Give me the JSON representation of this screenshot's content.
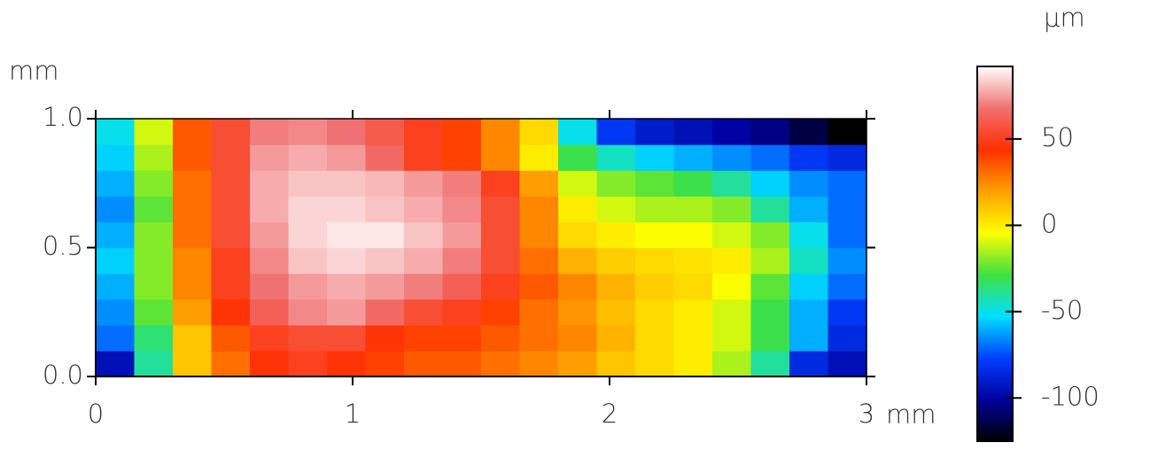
{
  "chart_data": {
    "type": "heatmap",
    "x_unit": "mm",
    "y_unit": "mm",
    "z_unit": "µm",
    "xlim": [
      0,
      3
    ],
    "ylim": [
      0,
      1
    ],
    "xticks": [
      0,
      1,
      2,
      3
    ],
    "yticks": [
      {
        "value": 0,
        "label": "0.0"
      },
      {
        "value": 0.5,
        "label": "0.5"
      },
      {
        "value": 1,
        "label": "1.0"
      }
    ],
    "zlim": [
      -125,
      92
    ],
    "zticks": [
      50,
      0,
      -50,
      -100
    ],
    "colors": [
      "#000000",
      "#0000a0",
      "#0040ff",
      "#00e0ff",
      "#40e040",
      "#ffff00",
      "#ffa000",
      "#ff3000",
      "#f07070",
      "#ffffff"
    ],
    "z": [
      [
        -95,
        -40,
        10,
        30,
        45,
        50,
        45,
        40,
        35,
        35,
        30,
        25,
        20,
        10,
        5,
        0,
        -15,
        -40,
        -85,
        -95
      ],
      [
        -70,
        -35,
        10,
        35,
        50,
        55,
        55,
        45,
        40,
        40,
        35,
        30,
        25,
        15,
        5,
        0,
        -10,
        -30,
        -60,
        -85
      ],
      [
        -65,
        -25,
        20,
        45,
        62,
        72,
        75,
        65,
        55,
        50,
        40,
        30,
        22,
        12,
        5,
        0,
        -10,
        -30,
        -60,
        -80
      ],
      [
        -60,
        -20,
        25,
        50,
        68,
        75,
        78,
        75,
        70,
        62,
        50,
        35,
        25,
        15,
        8,
        5,
        -5,
        -25,
        -55,
        -70
      ],
      [
        -55,
        -20,
        25,
        50,
        72,
        82,
        85,
        82,
        78,
        70,
        55,
        30,
        15,
        8,
        5,
        3,
        0,
        -15,
        -45,
        -65
      ],
      [
        -60,
        -20,
        30,
        55,
        75,
        85,
        88,
        88,
        82,
        75,
        55,
        25,
        5,
        0,
        -5,
        -5,
        -10,
        -20,
        -50,
        -70
      ],
      [
        -65,
        -25,
        30,
        55,
        78,
        85,
        85,
        82,
        78,
        72,
        55,
        25,
        0,
        -10,
        -15,
        -15,
        -20,
        -40,
        -60,
        -70
      ],
      [
        -60,
        -20,
        30,
        55,
        78,
        82,
        82,
        80,
        75,
        70,
        50,
        20,
        -10,
        -20,
        -25,
        -30,
        -40,
        -55,
        -65,
        -70
      ],
      [
        -55,
        -15,
        35,
        55,
        75,
        78,
        75,
        65,
        50,
        40,
        25,
        0,
        -30,
        -45,
        -55,
        -60,
        -65,
        -70,
        -80,
        -85
      ],
      [
        -50,
        -10,
        35,
        55,
        70,
        72,
        68,
        60,
        50,
        40,
        25,
        5,
        -50,
        -80,
        -90,
        -95,
        -100,
        -105,
        -115,
        -125
      ]
    ]
  }
}
